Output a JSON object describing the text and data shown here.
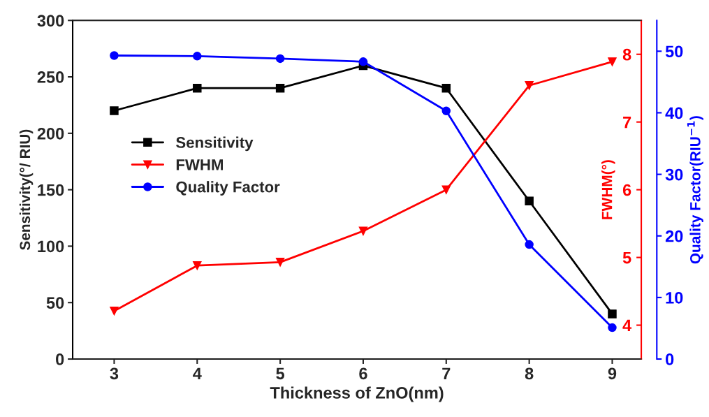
{
  "chart_data": {
    "type": "line",
    "xlabel": "Thickness of ZnO(nm)",
    "ylabel": "Sensitivity(°/ RIU)",
    "y2label": "FWHM(°)",
    "y3label": "Quality Factor(RIU$^{−1}$)",
    "x": [
      3,
      4,
      5,
      6,
      7,
      8,
      9
    ],
    "xlim": [
      2.5,
      9.35
    ],
    "xticks": [
      3,
      4,
      5,
      6,
      7,
      8,
      9
    ],
    "ylim": [
      0,
      300
    ],
    "yticks": [
      0,
      50,
      100,
      150,
      200,
      250,
      300
    ],
    "y2lim": [
      3.5,
      8.5
    ],
    "y2ticks": [
      4,
      5,
      6,
      7,
      8
    ],
    "y3lim": [
      0,
      55
    ],
    "y3ticks": [
      0,
      10,
      20,
      30,
      40,
      50
    ],
    "legend": "left",
    "grid": false,
    "series": [
      {
        "name": "Sensitivity",
        "color": "#000000",
        "marker": "square",
        "values": [
          220,
          240,
          240,
          260,
          240,
          140,
          40
        ]
      },
      {
        "name": "FWHM",
        "color": "#ff0000",
        "marker": "triangle",
        "axis": "y2",
        "values": [
          4.21,
          4.88,
          4.93,
          5.39,
          6.0,
          7.54,
          7.89
        ]
      },
      {
        "name": "Quality Factor",
        "color": "#0000ff",
        "marker": "circle",
        "axis": "y3",
        "values": [
          49.3,
          49.2,
          48.8,
          48.3,
          40.3,
          18.6,
          5.1
        ]
      }
    ]
  }
}
